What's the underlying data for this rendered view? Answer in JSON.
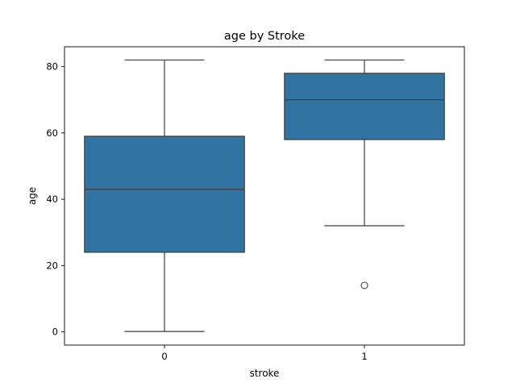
{
  "chart_data": {
    "type": "box",
    "title": "age by Stroke",
    "xlabel": "stroke",
    "ylabel": "age",
    "ylim": [
      -4,
      86
    ],
    "yticks": [
      0,
      20,
      40,
      60,
      80
    ],
    "categories": [
      "0",
      "1"
    ],
    "boxes": [
      {
        "category": "0",
        "whisker_low": 0.1,
        "q1": 24,
        "median": 43,
        "q3": 59,
        "whisker_high": 82,
        "outliers": []
      },
      {
        "category": "1",
        "whisker_low": 32,
        "q1": 58,
        "median": 70,
        "q3": 78,
        "whisker_high": 82,
        "outliers": [
          14
        ]
      }
    ],
    "box_color": "#3274a1",
    "line_color": "#3d3d3d",
    "grid": false,
    "legend": "none"
  }
}
